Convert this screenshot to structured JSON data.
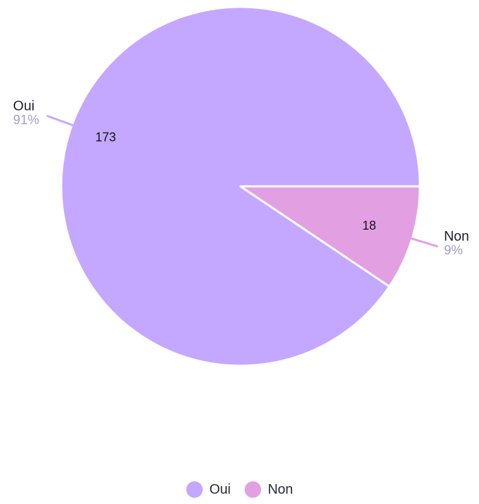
{
  "chart_data": {
    "type": "pie",
    "slices": [
      {
        "label": "Oui",
        "value": 173,
        "percent_label": "91%",
        "color": "#c4a8ff"
      },
      {
        "label": "Non",
        "value": 18,
        "percent_label": "9%",
        "color": "#e2a0e3"
      }
    ],
    "start_angle_deg": 0,
    "direction": "counterclockwise-from-right",
    "legend_position": "bottom-center"
  },
  "colors": {
    "percent_text": "#a39ec2",
    "separator": "#ffffff"
  },
  "legend": {
    "items": [
      {
        "label": "Oui",
        "color": "#c4a8ff"
      },
      {
        "label": "Non",
        "color": "#e2a0e3"
      }
    ]
  }
}
